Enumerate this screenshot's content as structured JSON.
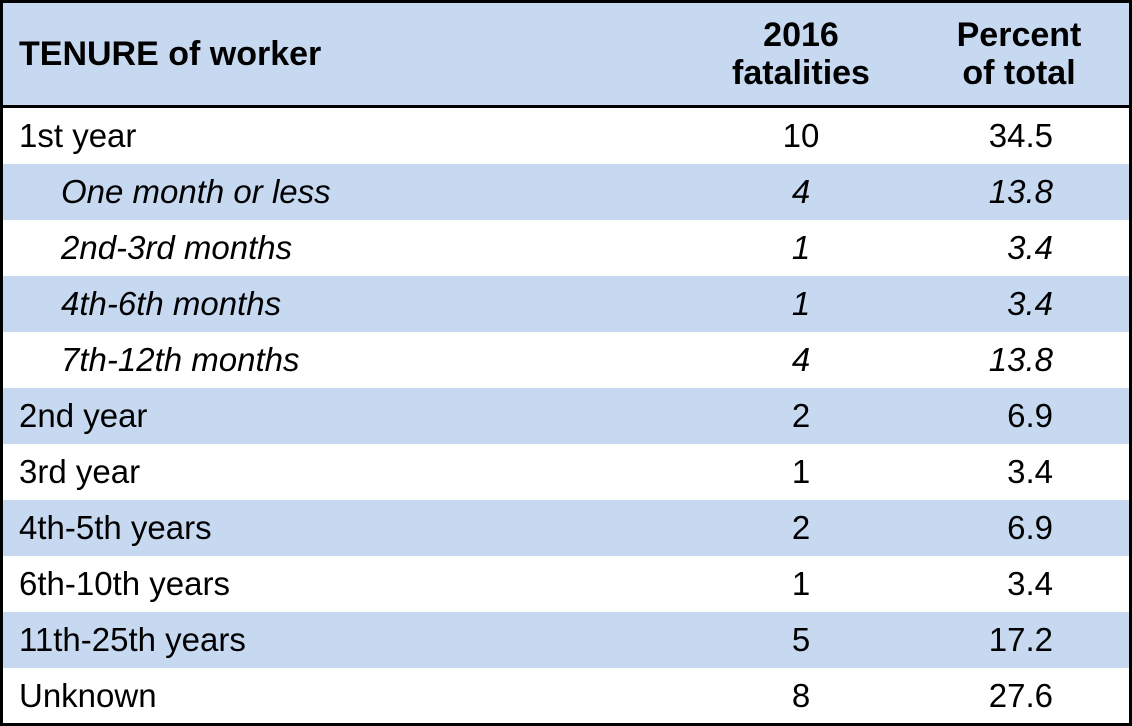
{
  "table": {
    "headers": {
      "tenure": "TENURE of worker",
      "fatalities_line1": "2016",
      "fatalities_line2": "fatalities",
      "percent_line1": "Percent",
      "percent_line2": "of total"
    },
    "rows": [
      {
        "label": "1st year",
        "fatalities": "10",
        "percent": "34.5"
      },
      {
        "label": "One month or less",
        "fatalities": "4",
        "percent": "13.8"
      },
      {
        "label": "2nd-3rd months",
        "fatalities": "1",
        "percent": "3.4"
      },
      {
        "label": "4th-6th months",
        "fatalities": "1",
        "percent": "3.4"
      },
      {
        "label": "7th-12th months",
        "fatalities": "4",
        "percent": "13.8"
      },
      {
        "label": "2nd year",
        "fatalities": "2",
        "percent": "6.9"
      },
      {
        "label": "3rd year",
        "fatalities": "1",
        "percent": "3.4"
      },
      {
        "label": "4th-5th years",
        "fatalities": "2",
        "percent": "6.9"
      },
      {
        "label": "6th-10th years",
        "fatalities": "1",
        "percent": "3.4"
      },
      {
        "label": "11th-25th years",
        "fatalities": "5",
        "percent": "17.2"
      },
      {
        "label": "Unknown",
        "fatalities": "8",
        "percent": "27.6"
      }
    ]
  },
  "colors": {
    "header_bg": "#c6d9f1",
    "stripe_bg": "#c6d9f1",
    "border": "#000000"
  }
}
